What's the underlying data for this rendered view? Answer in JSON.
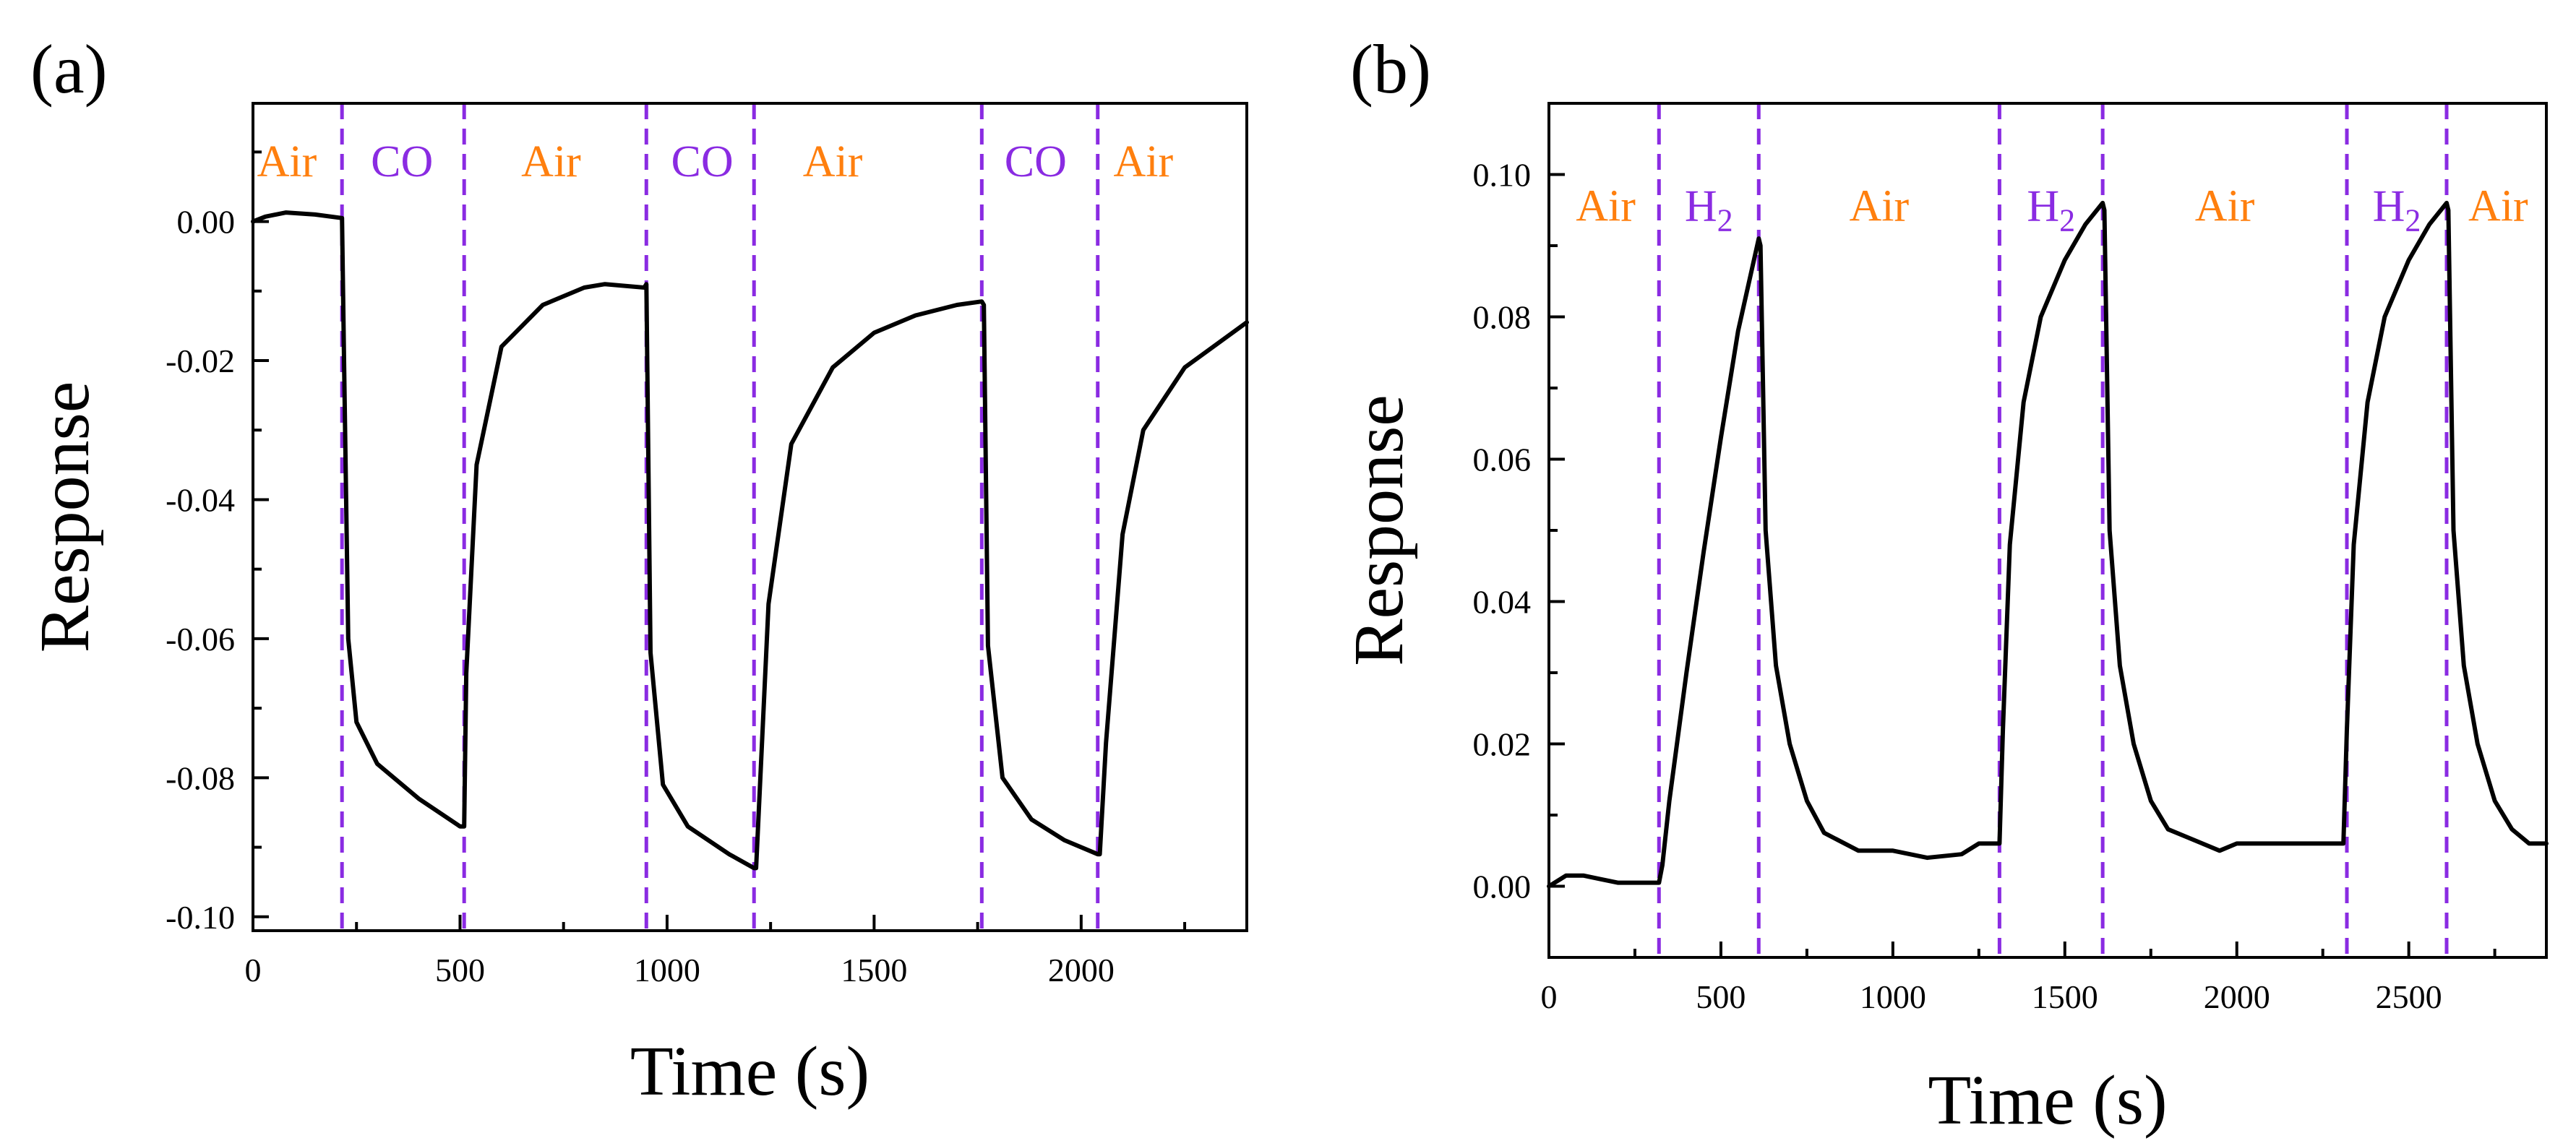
{
  "chart_data": [
    {
      "type": "line",
      "panel_label": "(a)",
      "title": "",
      "xlabel": "Time (s)",
      "ylabel": "Response",
      "xlim": [
        0,
        2400
      ],
      "ylim": [
        -0.102,
        0.017
      ],
      "xticks": [
        0,
        500,
        1000,
        1500,
        2000
      ],
      "xtick_labels": [
        "0",
        "500",
        "1000",
        "1500",
        "2000"
      ],
      "yticks": [
        0,
        -0.02,
        -0.04,
        -0.06,
        -0.08,
        -0.1
      ],
      "ytick_labels": [
        "0.00",
        "-0.02",
        "-0.04",
        "-0.06",
        "-0.08",
        "-0.10"
      ],
      "grid": false,
      "series": [
        {
          "name": "Response",
          "color": "#000000",
          "x": [
            0,
            30,
            80,
            150,
            215,
            220,
            230,
            250,
            300,
            400,
            500,
            510,
            515,
            540,
            600,
            700,
            800,
            850,
            945,
            950,
            960,
            990,
            1050,
            1150,
            1210,
            1215,
            1245,
            1300,
            1400,
            1500,
            1600,
            1700,
            1760,
            1765,
            1775,
            1810,
            1880,
            1960,
            2040,
            2045,
            2060,
            2100,
            2150,
            2250,
            2400
          ],
          "y": [
            0.0,
            0.0007,
            0.0013,
            0.001,
            0.0005,
            -0.02,
            -0.06,
            -0.072,
            -0.078,
            -0.083,
            -0.087,
            -0.087,
            -0.065,
            -0.035,
            -0.018,
            -0.012,
            -0.0095,
            -0.009,
            -0.0095,
            -0.009,
            -0.062,
            -0.081,
            -0.087,
            -0.091,
            -0.093,
            -0.093,
            -0.055,
            -0.032,
            -0.021,
            -0.016,
            -0.0135,
            -0.012,
            -0.0115,
            -0.012,
            -0.061,
            -0.08,
            -0.086,
            -0.089,
            -0.091,
            -0.091,
            -0.075,
            -0.045,
            -0.03,
            -0.021,
            -0.0145
          ]
        }
      ],
      "phase_boundaries": [
        215,
        510,
        950,
        1210,
        1760,
        2040
      ],
      "phase_labels": [
        {
          "text": "Air",
          "x": 82,
          "y": 0.0065,
          "color": "#ff7f0e"
        },
        {
          "text": "CO",
          "x": 360,
          "y": 0.0065,
          "color": "#8a2be2"
        },
        {
          "text": "Air",
          "x": 720,
          "y": 0.0065,
          "color": "#ff7f0e"
        },
        {
          "text": "CO",
          "x": 1085,
          "y": 0.0065,
          "color": "#8a2be2"
        },
        {
          "text": "Air",
          "x": 1400,
          "y": 0.0065,
          "color": "#ff7f0e"
        },
        {
          "text": "CO",
          "x": 1890,
          "y": 0.0065,
          "color": "#8a2be2"
        },
        {
          "text": "Air",
          "x": 2150,
          "y": 0.0065,
          "color": "#ff7f0e"
        }
      ]
    },
    {
      "type": "line",
      "panel_label": "(b)",
      "title": "",
      "xlabel": "Time (s)",
      "ylabel": "Response",
      "xlim": [
        0,
        2900
      ],
      "ylim": [
        -0.01,
        0.11
      ],
      "xticks": [
        0,
        500,
        1000,
        1500,
        2000,
        2500
      ],
      "xtick_labels": [
        "0",
        "500",
        "1000",
        "1500",
        "2000",
        "2500"
      ],
      "yticks": [
        0,
        0.02,
        0.04,
        0.06,
        0.08,
        0.1
      ],
      "ytick_labels": [
        "0.00",
        "0.02",
        "0.04",
        "0.06",
        "0.08",
        "0.10"
      ],
      "grid": false,
      "series": [
        {
          "name": "Response",
          "color": "#000000",
          "x": [
            0,
            50,
            100,
            150,
            200,
            250,
            320,
            330,
            350,
            400,
            450,
            500,
            550,
            610,
            615,
            630,
            660,
            700,
            750,
            800,
            900,
            1000,
            1100,
            1200,
            1250,
            1310,
            1320,
            1340,
            1380,
            1430,
            1500,
            1560,
            1610,
            1615,
            1630,
            1660,
            1700,
            1750,
            1800,
            1850,
            1900,
            1950,
            2000,
            2100,
            2200,
            2310,
            2320,
            2340,
            2380,
            2430,
            2500,
            2560,
            2610,
            2615,
            2630,
            2660,
            2700,
            2750,
            2800,
            2850,
            2900
          ],
          "y": [
            0.0,
            0.0015,
            0.0015,
            0.001,
            0.0005,
            0.0005,
            0.0005,
            0.003,
            0.012,
            0.03,
            0.047,
            0.063,
            0.078,
            0.091,
            0.09,
            0.05,
            0.031,
            0.02,
            0.012,
            0.0075,
            0.005,
            0.005,
            0.004,
            0.0045,
            0.006,
            0.006,
            0.022,
            0.048,
            0.068,
            0.08,
            0.088,
            0.093,
            0.096,
            0.095,
            0.05,
            0.031,
            0.02,
            0.012,
            0.008,
            0.007,
            0.006,
            0.005,
            0.006,
            0.006,
            0.006,
            0.006,
            0.022,
            0.048,
            0.068,
            0.08,
            0.088,
            0.093,
            0.096,
            0.095,
            0.05,
            0.031,
            0.02,
            0.012,
            0.008,
            0.006,
            0.006
          ]
        }
      ],
      "phase_boundaries": [
        320,
        610,
        1310,
        1610,
        2320,
        2610
      ],
      "phase_labels": [
        {
          "text": "Air",
          "x": 165,
          "y": 0.0935,
          "color": "#ff7f0e",
          "sub": ""
        },
        {
          "text": "H",
          "x": 465,
          "y": 0.0935,
          "color": "#8a2be2",
          "sub": "2"
        },
        {
          "text": "Air",
          "x": 960,
          "y": 0.0935,
          "color": "#ff7f0e",
          "sub": ""
        },
        {
          "text": "H",
          "x": 1460,
          "y": 0.0935,
          "color": "#8a2be2",
          "sub": "2"
        },
        {
          "text": "Air",
          "x": 1965,
          "y": 0.0935,
          "color": "#ff7f0e",
          "sub": ""
        },
        {
          "text": "H",
          "x": 2465,
          "y": 0.0935,
          "color": "#8a2be2",
          "sub": "2"
        },
        {
          "text": "Air",
          "x": 2760,
          "y": 0.0935,
          "color": "#ff7f0e",
          "sub": ""
        }
      ]
    }
  ]
}
